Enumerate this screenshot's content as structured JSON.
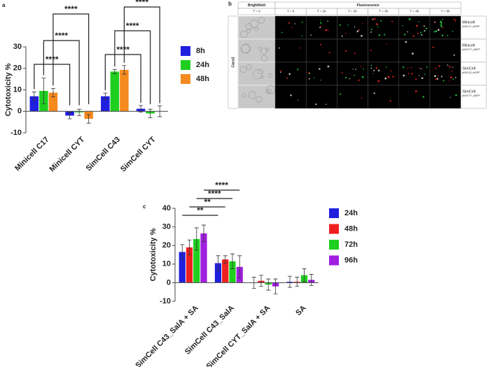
{
  "chart_data": [
    {
      "type": "bar",
      "panel": "a",
      "ylabel": "Cytotoxicity %",
      "categories": [
        "Minicell C17",
        "Minicell CYT",
        "SimCell C43",
        "SimCell CYT"
      ],
      "series": [
        {
          "name": "8h",
          "color": "#1f1fe0",
          "values": [
            7,
            -2,
            7,
            1.2
          ],
          "errors": [
            2,
            1.5,
            1.5,
            1.5
          ]
        },
        {
          "name": "24h",
          "color": "#1fcf1f",
          "values": [
            9.5,
            -0.5,
            18.5,
            -1
          ],
          "errors": [
            6,
            1.5,
            1,
            2
          ]
        },
        {
          "name": "48h",
          "color": "#f58a1f",
          "values": [
            8.7,
            -3.5,
            19.3,
            0
          ],
          "errors": [
            2,
            2,
            2,
            2.5
          ]
        }
      ],
      "ylim": [
        -10,
        30
      ],
      "yticks": [
        -10,
        0,
        10,
        20,
        30
      ],
      "significance": [
        {
          "from": 0,
          "to": 1,
          "series": 0,
          "label": "****"
        },
        {
          "from": 0,
          "to": 1,
          "series": 1,
          "label": "****"
        },
        {
          "from": 0,
          "to": 1,
          "series": 2,
          "label": "****"
        },
        {
          "from": 2,
          "to": 3,
          "series": 0,
          "label": "****"
        },
        {
          "from": 2,
          "to": 3,
          "series": 1,
          "label": "****"
        },
        {
          "from": 2,
          "to": 3,
          "series": 2,
          "label": "****"
        }
      ]
    },
    {
      "type": "bar",
      "panel": "c",
      "ylabel": "Cytotoxicity %",
      "categories": [
        "SimCell C43_SalA + SA",
        "SimCell C43_SalA",
        "SimCell CYT_SalA + SA",
        "SA"
      ],
      "series": [
        {
          "name": "24h",
          "color": "#1f1fe0",
          "values": [
            16.5,
            10.5,
            0,
            0.5
          ],
          "errors": [
            4,
            4,
            3,
            3
          ]
        },
        {
          "name": "48h",
          "color": "#f01f1f",
          "values": [
            19,
            12.5,
            1,
            0.5
          ],
          "errors": [
            4,
            2,
            3,
            2.5
          ]
        },
        {
          "name": "72h",
          "color": "#1fcf1f",
          "values": [
            23.5,
            11.5,
            -1,
            4
          ],
          "errors": [
            6,
            4,
            3,
            3.5
          ]
        },
        {
          "name": "96h",
          "color": "#a01fe0",
          "values": [
            26.5,
            8.5,
            -2,
            1.5
          ],
          "errors": [
            4.5,
            6,
            4,
            3
          ]
        }
      ],
      "ylim": [
        -10,
        40
      ],
      "yticks": [
        -10,
        0,
        10,
        20,
        30,
        40
      ],
      "significance": [
        {
          "from": 0,
          "to": 1,
          "series": 0,
          "label": "**"
        },
        {
          "from": 0,
          "to": 1,
          "series": 1,
          "label": "**"
        },
        {
          "from": 0,
          "to": 1,
          "series": 2,
          "label": "****"
        },
        {
          "from": 0,
          "to": 1,
          "series": 3,
          "label": "****"
        }
      ]
    }
  ],
  "panel_b": {
    "label": "b",
    "brightfield": "Brightfield",
    "fluorescence": "Fluorescence",
    "columns": [
      "T = 0",
      "T = 0",
      "T = 1h",
      "T = 2h",
      "T = 3h",
      "T = 4h",
      "T = 5h"
    ],
    "cell_line": "Caco2",
    "rows": [
      {
        "name": "Minicell",
        "plasmid": "pNVC17_sfGFP"
      },
      {
        "name": "Minicell",
        "plasmid": "pNVCYT_sfGFP"
      },
      {
        "name": "SimCell",
        "plasmid": "pNVC43_sfGFP"
      },
      {
        "name": "SimCell",
        "plasmid": "pNVCYT_sfGFP"
      }
    ]
  }
}
